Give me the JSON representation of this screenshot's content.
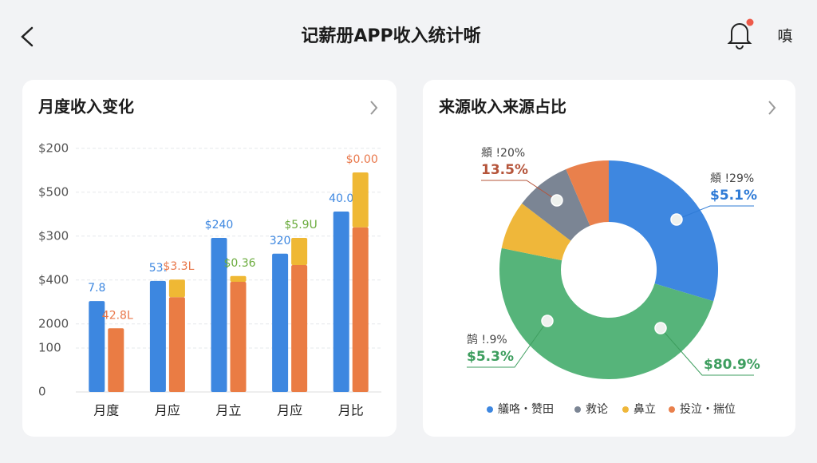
{
  "header": {
    "title": "记薪册APP收入统计哳",
    "action": "嗔"
  },
  "chart_data": [
    {
      "type": "bar",
      "title": "月度收入变化",
      "categories": [
        "月度",
        "月应",
        "月立",
        "月应",
        "月比"
      ],
      "ylim": [
        0,
        560
      ],
      "yticks": [
        0,
        100,
        {
          "value": 155,
          "label": "2000"
        },
        {
          "value": 255,
          "label": "$400"
        },
        {
          "value": 355,
          "label": "$300"
        },
        {
          "value": 455,
          "label": "$500"
        },
        {
          "value": 555,
          "label": "$200"
        }
      ],
      "grid": true,
      "series": [
        {
          "color": "#3d87e0",
          "values": [
            207,
            253,
            351,
            315,
            411
          ],
          "labels": [
            "7.8",
            "53.",
            "$240",
            "320",
            "40.0"
          ]
        },
        {
          "color": "#ea7c44",
          "values": [
            145,
            216,
            251,
            289,
            375
          ]
        },
        {
          "color": "#efb834",
          "values": [
            null,
            40,
            13,
            62,
            125
          ],
          "stack": true
        }
      ],
      "top_labels": [
        "42.8L",
        "$3.3L",
        "$0.36",
        "$5.9U",
        "$0.00"
      ],
      "top_label_colors": [
        "#e9774a",
        "#e9774a",
        "#6aab3c",
        "#6aab3c",
        "#e9774a"
      ]
    },
    {
      "type": "donut",
      "title": "来源收入来源占比",
      "values": [
        29.6,
        48.5,
        7.2,
        8.2,
        6.4
      ],
      "colors": [
        "#3e87e0",
        "#56b47a",
        "#efb73a",
        "#7b8594",
        "#e9804c"
      ],
      "callouts": [
        {
          "caption": "頫 !20%",
          "value": "13.5%",
          "color": "#b5543a"
        },
        {
          "caption": "頫 !29%",
          "value": "$5.1%",
          "color": "#2f7bd6"
        },
        {
          "caption": "鹄 !.9%",
          "value": "$5.3%",
          "color": "#3e9e5f"
        },
        {
          "value": "$80.9%",
          "color": "#3e9e5f"
        }
      ],
      "legend": [
        {
          "name": "艤咯・赞田",
          "color": "#3e87e0"
        },
        {
          "name": "救论",
          "color": "#7b8594"
        },
        {
          "name": "鼻立",
          "color": "#efb73a"
        },
        {
          "name": "投泣・揣位",
          "color": "#e9804c"
        }
      ]
    }
  ]
}
